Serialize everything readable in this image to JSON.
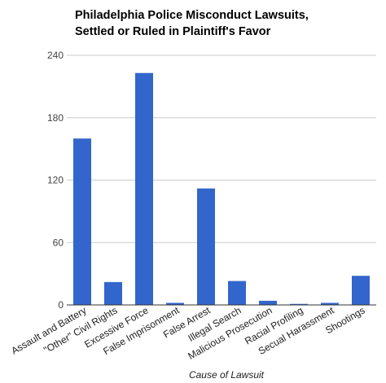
{
  "chart_data": {
    "type": "bar",
    "title_lines": [
      "Philadelphia Police Misconduct Lawsuits,",
      "Settled or Ruled in Plaintiff's Favor"
    ],
    "xlabel": "Cause of Lawsuit",
    "ylabel": "",
    "ylim": [
      0,
      240
    ],
    "yticks": [
      "0",
      "60",
      "120",
      "180",
      "240"
    ],
    "grid": true,
    "categories": [
      "Assault and Battery",
      "\"Other\" Civil Rights",
      "Excessive Force",
      "False Imprisonment",
      "False Arrest",
      "Illegal Search",
      "Malicious Prosecution",
      "Racial Profiling",
      "Secual Harassment",
      "Shootings"
    ],
    "values": [
      160,
      22,
      223,
      2,
      112,
      23,
      4,
      1,
      2,
      28
    ],
    "colors": {
      "bar": "#3366cc",
      "grid": "#cccccc",
      "axis": "#333333",
      "text": "#444444"
    }
  }
}
